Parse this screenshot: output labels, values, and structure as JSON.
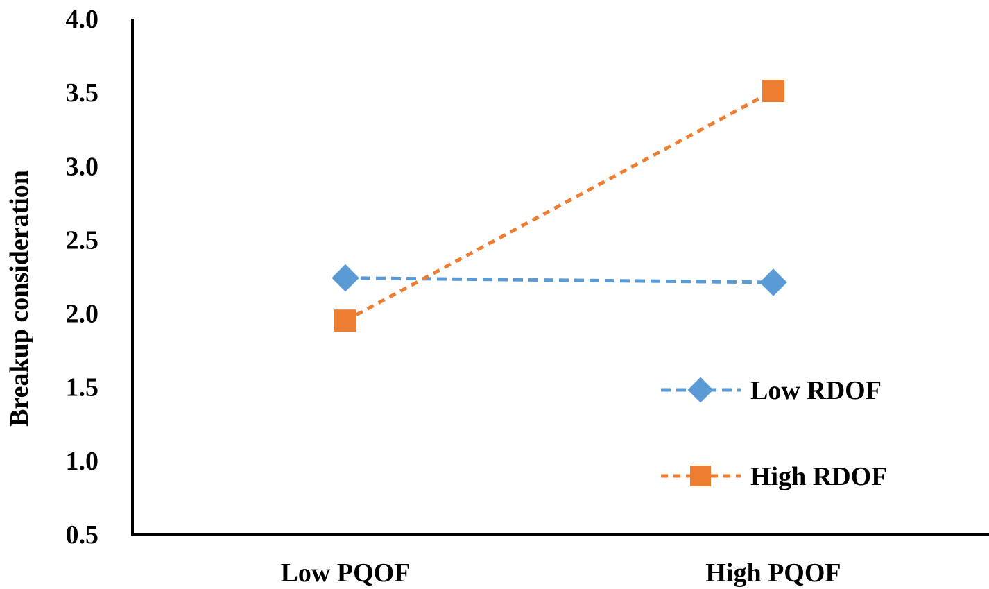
{
  "chart_data": {
    "type": "line",
    "title": "",
    "xlabel": "",
    "ylabel": "Breakup consideration",
    "categories": [
      "Low  PQOF",
      "High  PQOF"
    ],
    "ylim": [
      0.5,
      4.0
    ],
    "yticks": [
      "0.5",
      "1.0",
      "1.5",
      "2.0",
      "2.5",
      "3.0",
      "3.5",
      "4.0"
    ],
    "grid": false,
    "legend_position": "bottom-right",
    "series": [
      {
        "name": "Low  RDOF",
        "values": [
          2.24,
          2.21
        ],
        "color": "#5B9BD5",
        "marker": "diamond",
        "line": "dashed"
      },
      {
        "name": "High  RDOF",
        "values": [
          1.95,
          3.51
        ],
        "color": "#ED7D31",
        "marker": "square",
        "line": "dashed"
      }
    ]
  }
}
